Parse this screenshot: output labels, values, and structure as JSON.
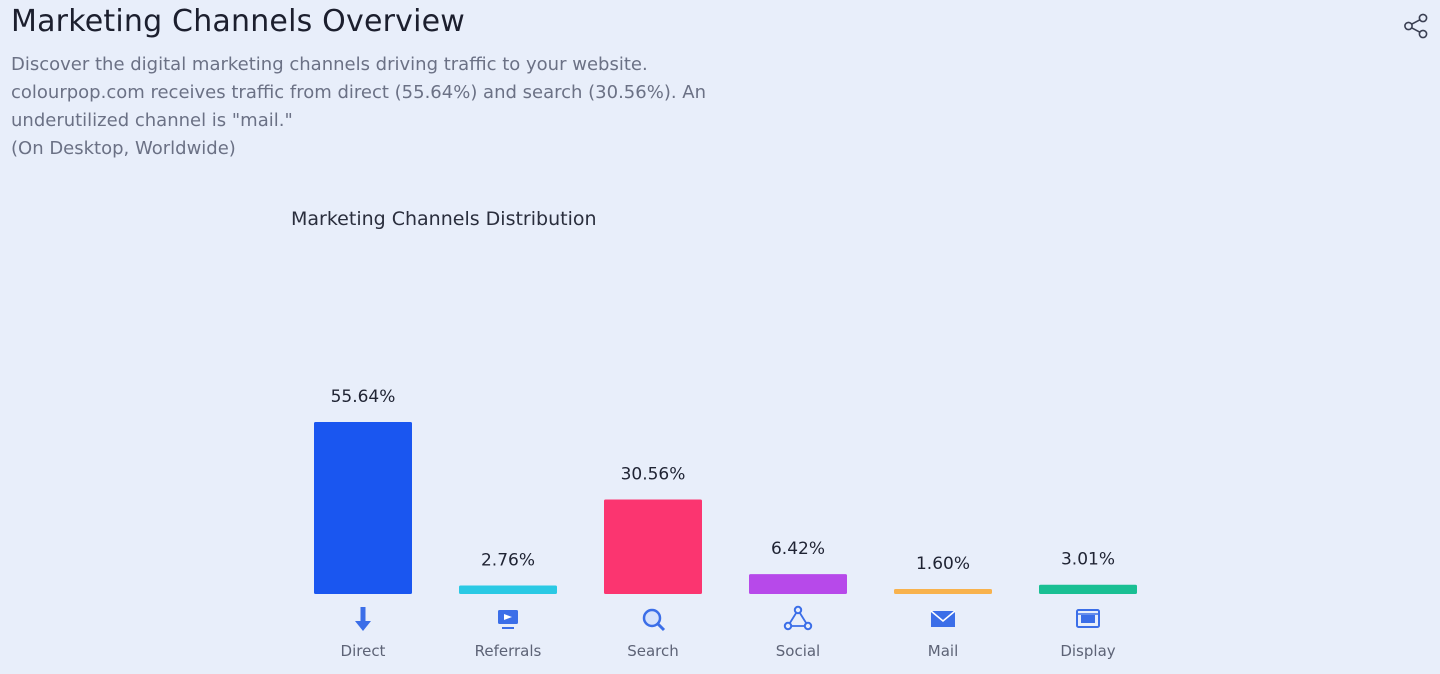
{
  "header": {
    "title": "Marketing Channels Overview",
    "share_icon": "share-icon"
  },
  "description": {
    "line1": "Discover the digital marketing channels driving traffic to your website.",
    "line2": "colourpop.com receives traffic from direct (55.64%) and search (30.56%). An",
    "line3": "underutilized channel is \"mail.\"",
    "line4": "(On Desktop, Worldwide)"
  },
  "colors": {
    "Direct": "#1a56f0",
    "Referrals": "#2ac9e4",
    "Search": "#fb3570",
    "Social": "#b749ea",
    "Mail": "#f8b24d",
    "Display": "#19bf93"
  },
  "chart_data": {
    "type": "bar",
    "title": "Marketing Channels Distribution",
    "categories": [
      "Direct",
      "Referrals",
      "Search",
      "Social",
      "Mail",
      "Display"
    ],
    "values": [
      55.64,
      2.76,
      30.56,
      6.42,
      1.6,
      3.01
    ],
    "value_labels": [
      "55.64%",
      "2.76%",
      "30.56%",
      "6.42%",
      "1.60%",
      "3.01%"
    ],
    "icons": [
      "direct-icon",
      "referrals-icon",
      "search-icon",
      "social-icon",
      "mail-icon",
      "display-icon"
    ],
    "ylim": [
      0,
      55.64
    ],
    "grid": false,
    "legend": "none"
  }
}
